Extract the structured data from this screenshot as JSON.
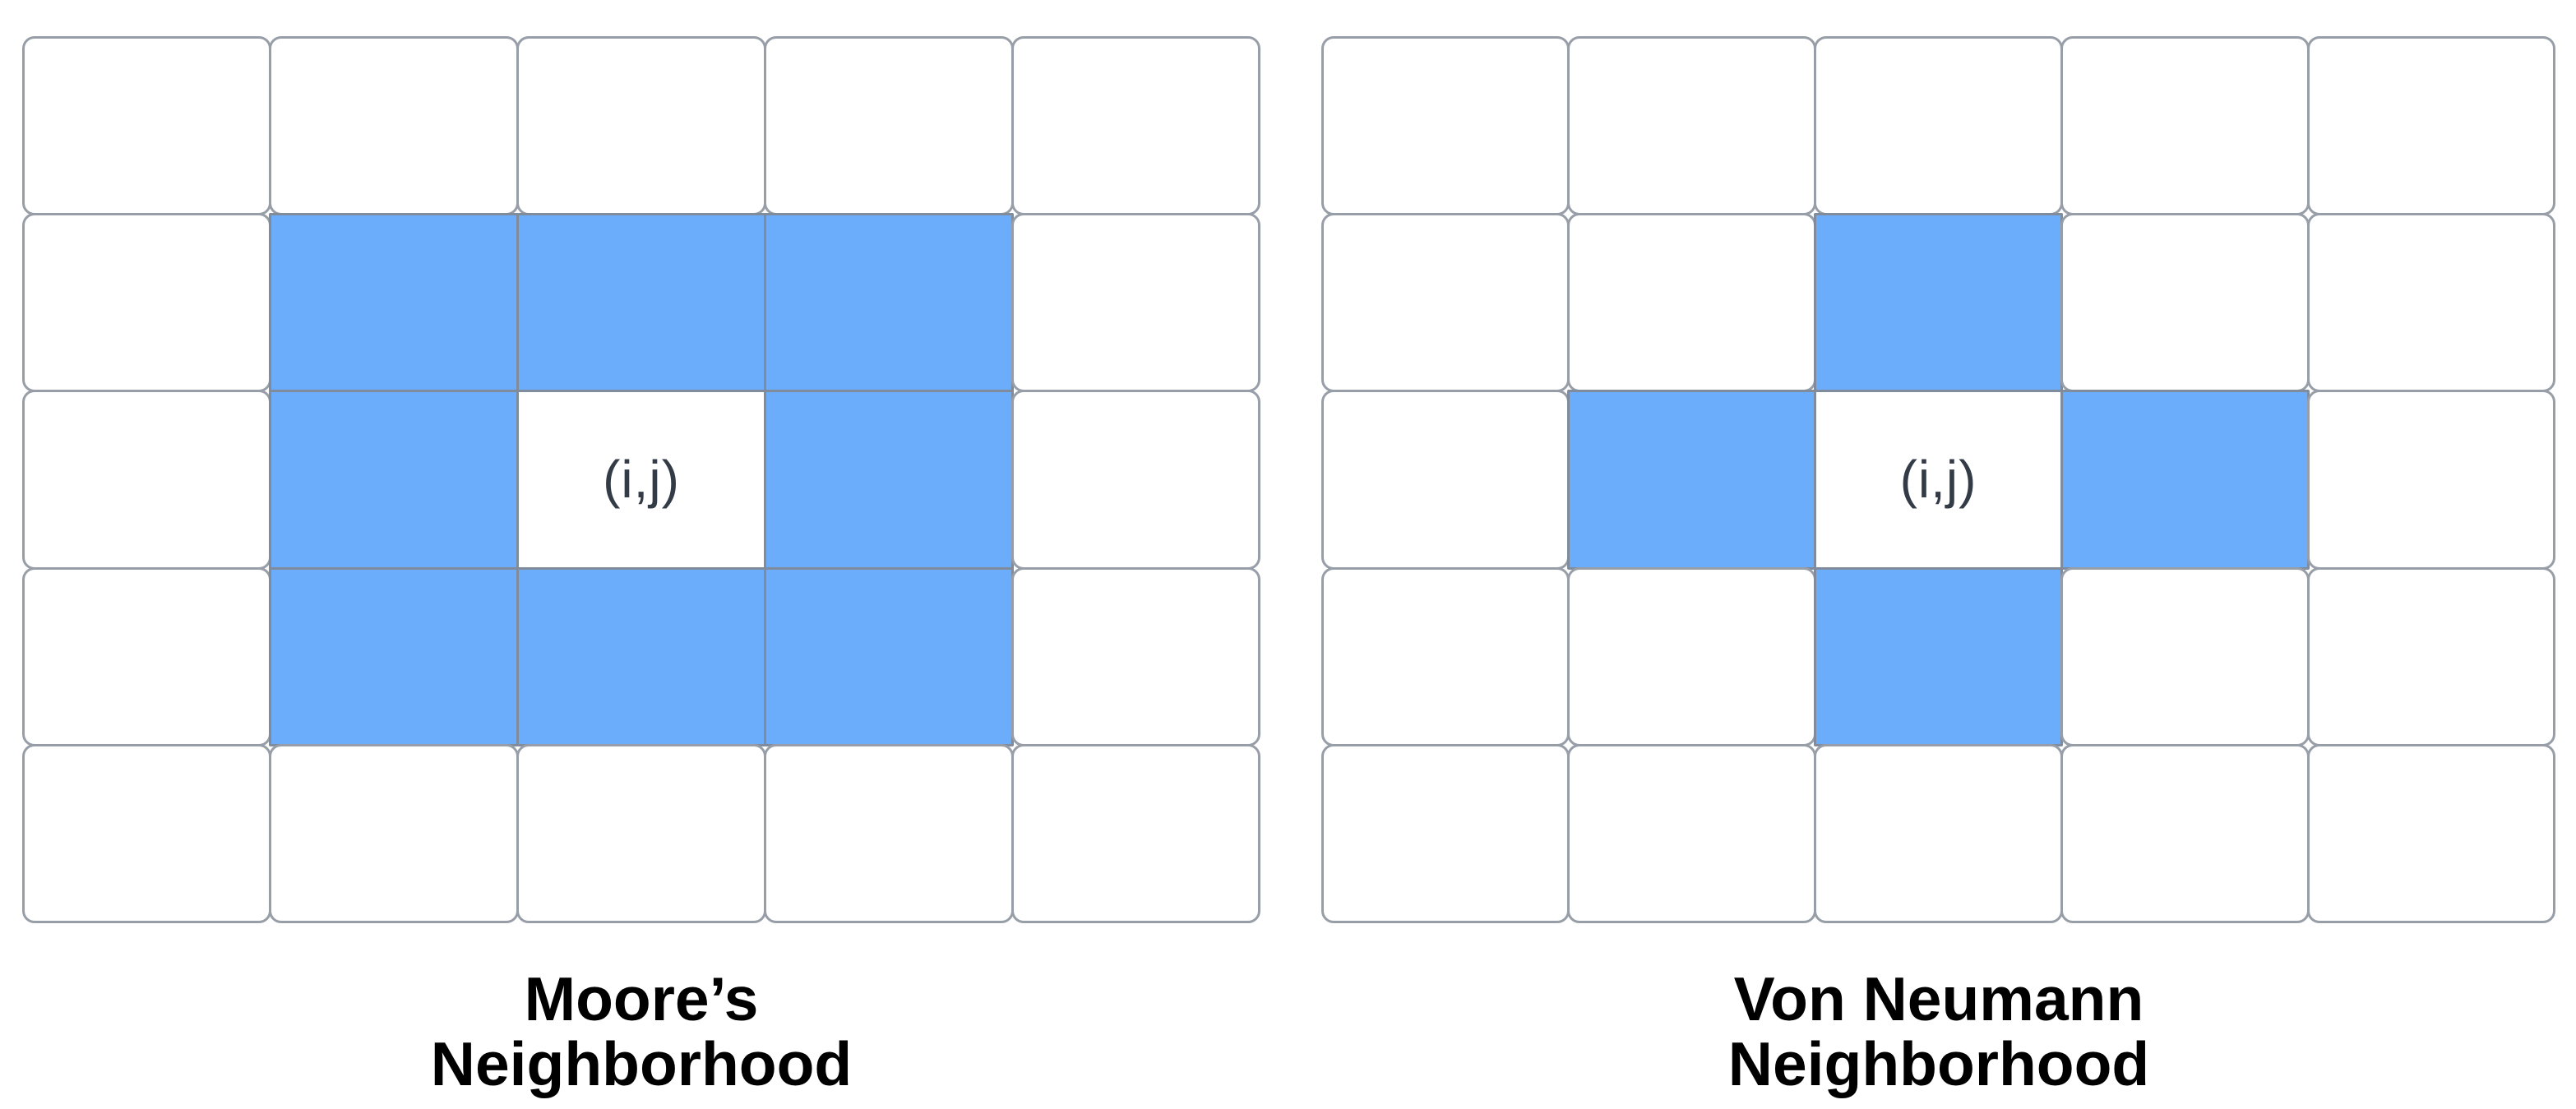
{
  "figure": {
    "colors": {
      "page_bg": "#ffffff",
      "highlight": "#6CADFB",
      "grid_border": "#979EA8",
      "grid_border_strong": "#808B9B",
      "center_text": "#333B46",
      "label_text": "#000000"
    },
    "grids": [
      {
        "id": "moore",
        "rows": 5,
        "cols": 5,
        "center_cell": [
          2,
          2
        ],
        "center_label": "(i,j)",
        "highlighted_cells": [
          [
            1,
            1
          ],
          [
            1,
            2
          ],
          [
            1,
            3
          ],
          [
            2,
            1
          ],
          [
            2,
            3
          ],
          [
            3,
            1
          ],
          [
            3,
            2
          ],
          [
            3,
            3
          ]
        ],
        "label_line1": "Moore’s",
        "label_line2": "Neighborhood"
      },
      {
        "id": "von-neumann",
        "rows": 5,
        "cols": 5,
        "center_cell": [
          2,
          2
        ],
        "center_label": "(i,j)",
        "highlighted_cells": [
          [
            1,
            2
          ],
          [
            2,
            1
          ],
          [
            2,
            3
          ],
          [
            3,
            2
          ]
        ],
        "label_line1": "Von Neumann",
        "label_line2": "Neighborhood"
      }
    ]
  }
}
